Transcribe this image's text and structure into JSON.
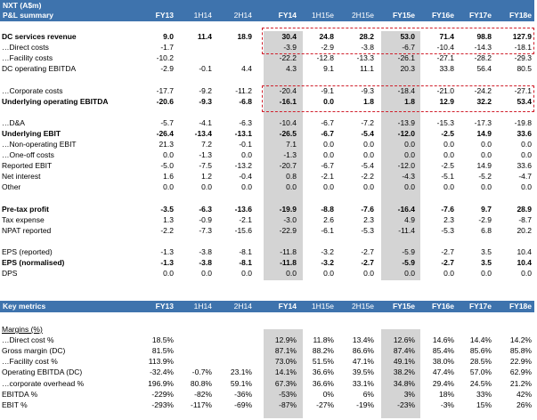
{
  "colors": {
    "header_bg": "#3e73ad",
    "shade": "#d4d4d4",
    "dash": "#d01f2b"
  },
  "pl": {
    "title": "NXT  (A$m)",
    "section": "P&L summary",
    "columns": [
      {
        "label": "FY13",
        "bold": true
      },
      {
        "label": "1H14",
        "bold": false
      },
      {
        "label": "2H14",
        "bold": false
      },
      {
        "label": "FY14",
        "bold": true
      },
      {
        "label": "1H15e",
        "bold": false
      },
      {
        "label": "2H15e",
        "bold": false
      },
      {
        "label": "FY15e",
        "bold": true
      },
      {
        "label": "FY16e",
        "bold": true
      },
      {
        "label": "FY17e",
        "bold": true
      },
      {
        "label": "FY18e",
        "bold": true
      }
    ],
    "rows": [
      {
        "label": "DC services revenue",
        "bold": true,
        "values": [
          "9.0",
          "11.4",
          "18.9",
          "30.4",
          "24.8",
          "28.2",
          "53.0",
          "71.4",
          "98.8",
          "127.9"
        ]
      },
      {
        "label": "…Direct costs",
        "bold": false,
        "values": [
          "-1.7",
          "",
          "",
          "-3.9",
          "-2.9",
          "-3.8",
          "-6.7",
          "-10.4",
          "-14.3",
          "-18.1"
        ]
      },
      {
        "label": "…Facility costs",
        "bold": false,
        "values": [
          "-10.2",
          "",
          "",
          "-22.2",
          "-12.8",
          "-13.3",
          "-26.1",
          "-27.1",
          "-28.2",
          "-29.3"
        ]
      },
      {
        "label": "DC operating EBITDA",
        "bold": false,
        "values": [
          "-2.9",
          "-0.1",
          "4.4",
          "4.3",
          "9.1",
          "11.1",
          "20.3",
          "33.8",
          "56.4",
          "80.5"
        ]
      },
      {
        "label": "",
        "bold": false,
        "values": [
          "",
          "",
          "",
          "",
          "",
          "",
          "",
          "",
          "",
          ""
        ]
      },
      {
        "label": "…Corporate costs",
        "bold": false,
        "values": [
          "-17.7",
          "-9.2",
          "-11.2",
          "-20.4",
          "-9.1",
          "-9.3",
          "-18.4",
          "-21.0",
          "-24.2",
          "-27.1"
        ]
      },
      {
        "label": "Underlying operating EBITDA",
        "bold": true,
        "values": [
          "-20.6",
          "-9.3",
          "-6.8",
          "-16.1",
          "0.0",
          "1.8",
          "1.8",
          "12.9",
          "32.2",
          "53.4"
        ]
      },
      {
        "label": "",
        "bold": false,
        "values": [
          "",
          "",
          "",
          "",
          "",
          "",
          "",
          "",
          "",
          ""
        ]
      },
      {
        "label": "…D&A",
        "bold": false,
        "values": [
          "-5.7",
          "-4.1",
          "-6.3",
          "-10.4",
          "-6.7",
          "-7.2",
          "-13.9",
          "-15.3",
          "-17.3",
          "-19.8"
        ]
      },
      {
        "label": "Underlying EBIT",
        "bold": true,
        "values": [
          "-26.4",
          "-13.4",
          "-13.1",
          "-26.5",
          "-6.7",
          "-5.4",
          "-12.0",
          "-2.5",
          "14.9",
          "33.6"
        ]
      },
      {
        "label": "…Non-operating EBIT",
        "bold": false,
        "values": [
          "21.3",
          "7.2",
          "-0.1",
          "7.1",
          "0.0",
          "0.0",
          "0.0",
          "0.0",
          "0.0",
          "0.0"
        ]
      },
      {
        "label": "…One-off costs",
        "bold": false,
        "values": [
          "0.0",
          "-1.3",
          "0.0",
          "-1.3",
          "0.0",
          "0.0",
          "0.0",
          "0.0",
          "0.0",
          "0.0"
        ]
      },
      {
        "label": "Reported EBIT",
        "bold": false,
        "values": [
          "-5.0",
          "-7.5",
          "-13.2",
          "-20.7",
          "-6.7",
          "-5.4",
          "-12.0",
          "-2.5",
          "14.9",
          "33.6"
        ]
      },
      {
        "label": "Net interest",
        "bold": false,
        "values": [
          "1.6",
          "1.2",
          "-0.4",
          "0.8",
          "-2.1",
          "-2.2",
          "-4.3",
          "-5.1",
          "-5.2",
          "-4.7"
        ]
      },
      {
        "label": "Other",
        "bold": false,
        "values": [
          "0.0",
          "0.0",
          "0.0",
          "0.0",
          "0.0",
          "0.0",
          "0.0",
          "0.0",
          "0.0",
          "0.0"
        ]
      },
      {
        "label": "",
        "bold": false,
        "values": [
          "",
          "",
          "",
          "",
          "",
          "",
          "",
          "",
          "",
          ""
        ]
      },
      {
        "label": "Pre-tax profit",
        "bold": true,
        "values": [
          "-3.5",
          "-6.3",
          "-13.6",
          "-19.9",
          "-8.8",
          "-7.6",
          "-16.4",
          "-7.6",
          "9.7",
          "28.9"
        ]
      },
      {
        "label": "Tax expense",
        "bold": false,
        "values": [
          "1.3",
          "-0.9",
          "-2.1",
          "-3.0",
          "2.6",
          "2.3",
          "4.9",
          "2.3",
          "-2.9",
          "-8.7"
        ]
      },
      {
        "label": "NPAT reported",
        "bold": false,
        "values": [
          "-2.2",
          "-7.3",
          "-15.6",
          "-22.9",
          "-6.1",
          "-5.3",
          "-11.4",
          "-5.3",
          "6.8",
          "20.2"
        ]
      },
      {
        "label": "",
        "bold": false,
        "values": [
          "",
          "",
          "",
          "",
          "",
          "",
          "",
          "",
          "",
          ""
        ]
      },
      {
        "label": "EPS (reported)",
        "bold": false,
        "values": [
          "-1.3",
          "-3.8",
          "-8.1",
          "-11.8",
          "-3.2",
          "-2.7",
          "-5.9",
          "-2.7",
          "3.5",
          "10.4"
        ]
      },
      {
        "label": "EPS (normalised)",
        "bold": true,
        "values": [
          "-1.3",
          "-3.8",
          "-8.1",
          "-11.8",
          "-3.2",
          "-2.7",
          "-5.9",
          "-2.7",
          "3.5",
          "10.4"
        ]
      },
      {
        "label": "DPS",
        "bold": false,
        "values": [
          "0.0",
          "0.0",
          "0.0",
          "0.0",
          "0.0",
          "0.0",
          "0.0",
          "0.0",
          "0.0",
          "0.0"
        ]
      }
    ]
  },
  "metrics": {
    "section": "Key metrics",
    "rows": [
      {
        "label": "Margins (%)",
        "bold": false,
        "underline": true,
        "values": [
          "",
          "",
          "",
          "",
          "",
          "",
          "",
          "",
          "",
          ""
        ]
      },
      {
        "label": "…Direct cost %",
        "bold": false,
        "values": [
          "18.5%",
          "",
          "",
          "12.9%",
          "11.8%",
          "13.4%",
          "12.6%",
          "14.6%",
          "14.4%",
          "14.2%"
        ]
      },
      {
        "label": "Gross margin (DC)",
        "bold": false,
        "values": [
          "81.5%",
          "",
          "",
          "87.1%",
          "88.2%",
          "86.6%",
          "87.4%",
          "85.4%",
          "85.6%",
          "85.8%"
        ]
      },
      {
        "label": "…Facility cost %",
        "bold": false,
        "values": [
          "113.9%",
          "",
          "",
          "73.0%",
          "51.5%",
          "47.1%",
          "49.1%",
          "38.0%",
          "28.5%",
          "22.9%"
        ]
      },
      {
        "label": "Operating EBITDA  (DC)",
        "bold": false,
        "values": [
          "-32.4%",
          "-0.7%",
          "23.1%",
          "14.1%",
          "36.6%",
          "39.5%",
          "38.2%",
          "47.4%",
          "57.0%",
          "62.9%"
        ]
      },
      {
        "label": "…corporate overhead %",
        "bold": false,
        "values": [
          "196.9%",
          "80.8%",
          "59.1%",
          "67.3%",
          "36.6%",
          "33.1%",
          "34.8%",
          "29.4%",
          "24.5%",
          "21.2%"
        ]
      },
      {
        "label": "EBITDA %",
        "bold": false,
        "values": [
          "-229%",
          "-82%",
          "-36%",
          "-53%",
          "0%",
          "6%",
          "3%",
          "18%",
          "33%",
          "42%"
        ]
      },
      {
        "label": "EBIT %",
        "bold": false,
        "values": [
          "-293%",
          "-117%",
          "-69%",
          "-87%",
          "-27%",
          "-19%",
          "-23%",
          "-3%",
          "15%",
          "26%"
        ]
      }
    ]
  }
}
